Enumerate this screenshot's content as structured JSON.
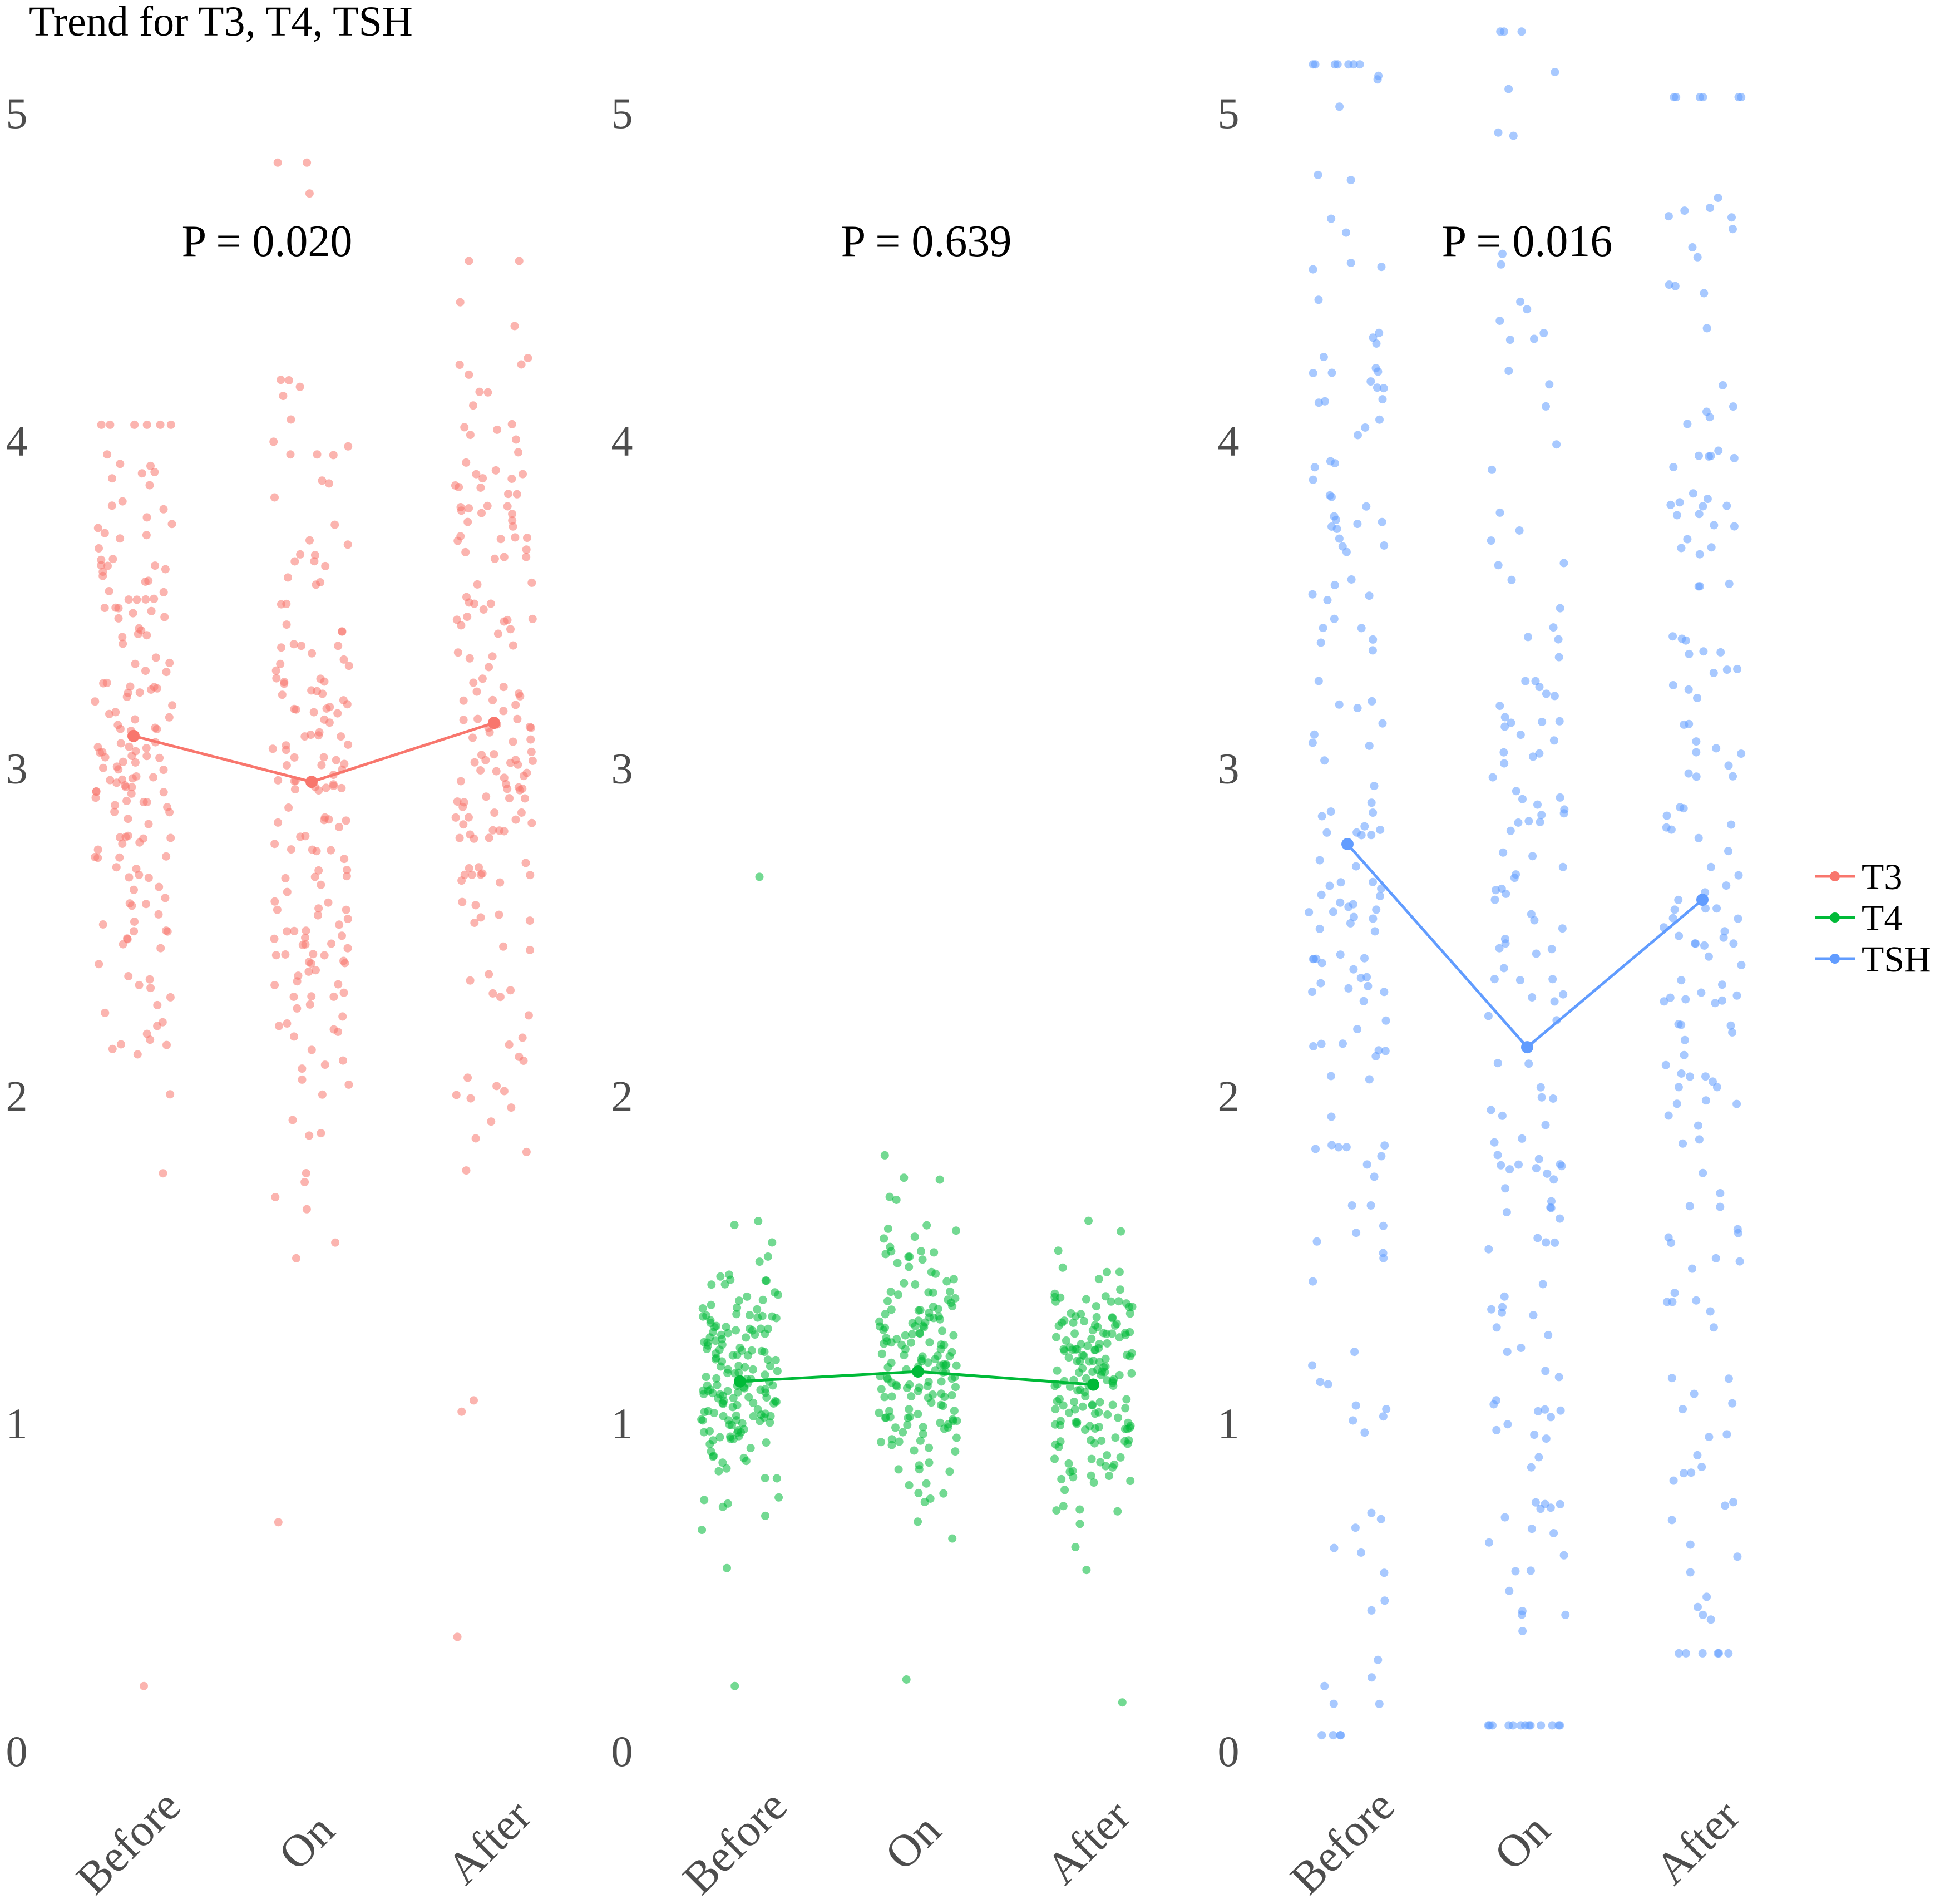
{
  "title": "Trend for T3, T4, TSH",
  "chart_data": {
    "type": "scatter",
    "layout": "faceted-jitter-strip-with-mean-lines",
    "title": "Trend for T3, T4, TSH",
    "categories": [
      "Before",
      "On",
      "After"
    ],
    "ylim": [
      0,
      5
    ],
    "yticks": [
      0,
      1,
      2,
      3,
      4,
      5
    ],
    "grid": false,
    "legend_position": "right",
    "panels": [
      {
        "name": "T3",
        "color": "#F8766D",
        "p_label": "P = 0.020",
        "means": [
          3.1,
          2.96,
          3.14
        ],
        "spread": [
          {
            "center": 3.1,
            "sd": 0.55,
            "min": 0.2,
            "max": 4.05
          },
          {
            "center": 2.96,
            "sd": 0.6,
            "min": 0.7,
            "max": 4.85
          },
          {
            "center": 3.14,
            "sd": 0.62,
            "min": 0.35,
            "max": 4.55
          }
        ]
      },
      {
        "name": "T4",
        "color": "#00BA38",
        "p_label": "P = 0.639",
        "means": [
          1.13,
          1.16,
          1.12
        ],
        "spread": [
          {
            "center": 1.13,
            "sd": 0.2,
            "min": 0.2,
            "max": 2.67
          },
          {
            "center": 1.16,
            "sd": 0.22,
            "min": 0.22,
            "max": 1.82
          },
          {
            "center": 1.12,
            "sd": 0.2,
            "min": 0.15,
            "max": 1.62
          }
        ]
      },
      {
        "name": "TSH",
        "color": "#619CFF",
        "p_label": "P = 0.016",
        "means": [
          2.77,
          2.15,
          2.6
        ],
        "spread": [
          {
            "center": 2.77,
            "sd": 1.35,
            "min": 0.05,
            "max": 5.15
          },
          {
            "center": 2.15,
            "sd": 1.35,
            "min": 0.08,
            "max": 5.25
          },
          {
            "center": 2.6,
            "sd": 1.25,
            "min": 0.3,
            "max": 5.05
          }
        ]
      }
    ],
    "legend": [
      "T3",
      "T4",
      "TSH"
    ]
  }
}
